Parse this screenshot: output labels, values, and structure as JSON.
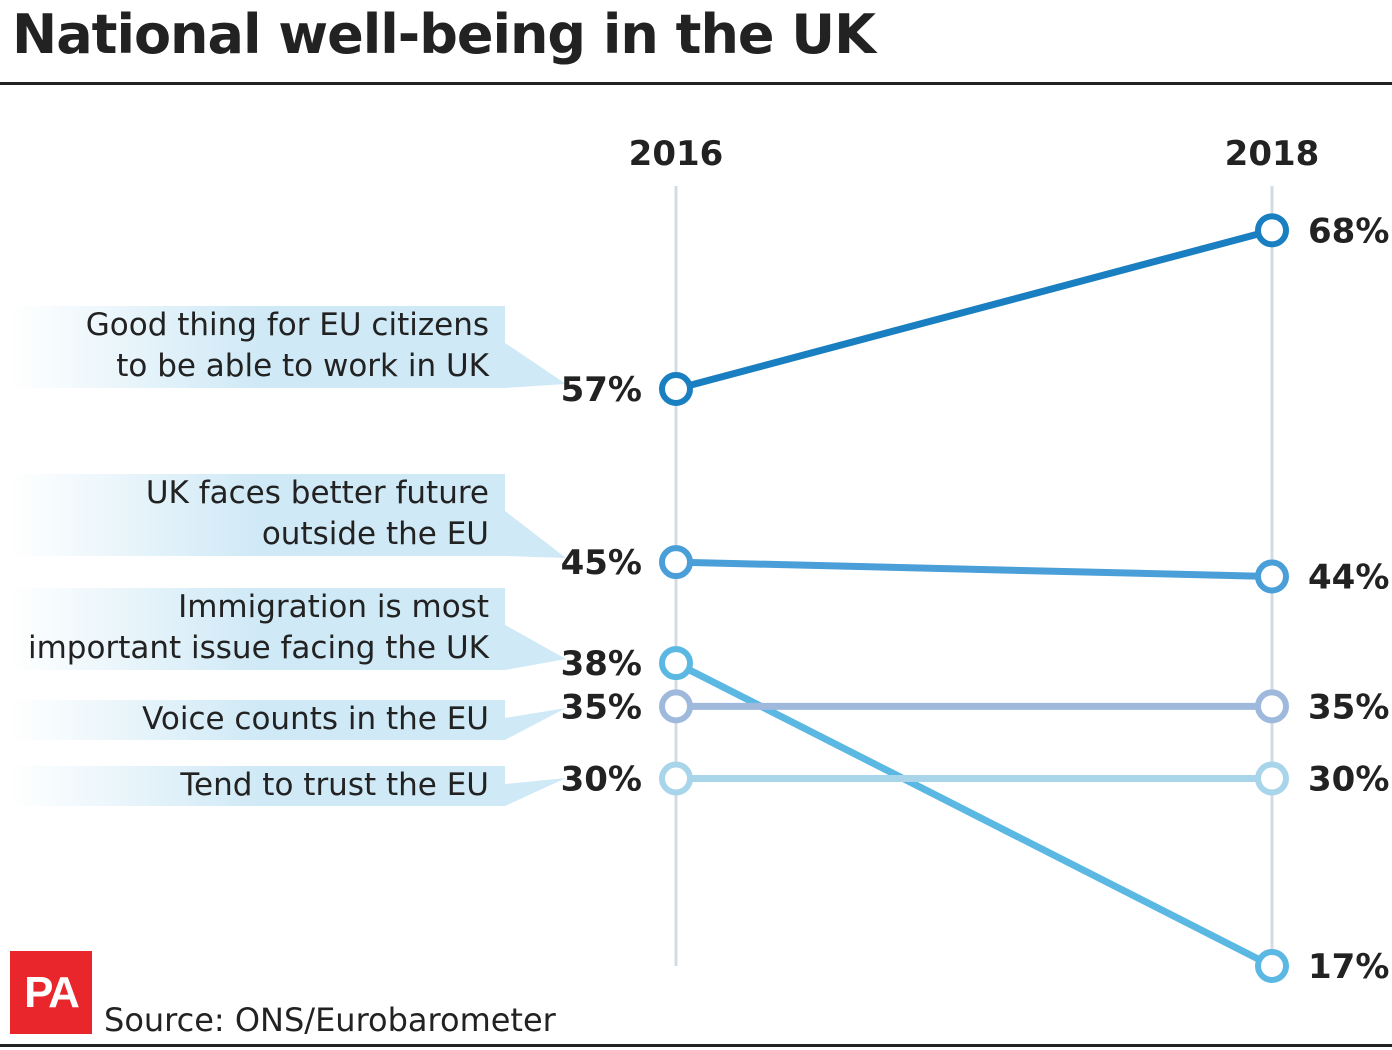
{
  "title": "National well-being in the UK",
  "source": "Source: ONS/Eurobarometer",
  "logo_text": "PA",
  "colors": {
    "axis": "#d5dbe3",
    "label_box": "#cfe9f6",
    "text": "#222222",
    "logo": "#e8262b"
  },
  "chart_data": {
    "type": "line",
    "x": [
      "2016",
      "2018"
    ],
    "unit": "%",
    "series": [
      {
        "name": "Good thing for EU citizens to be able to work in UK",
        "name_lines": [
          "Good thing for EU citizens",
          "to be able to work in UK"
        ],
        "values": [
          57,
          68
        ],
        "labels": [
          "57%",
          "68%"
        ],
        "color": "#1a7fc1"
      },
      {
        "name": "UK faces better future outside the EU",
        "name_lines": [
          "UK faces better future",
          "outside the EU"
        ],
        "values": [
          45,
          44
        ],
        "labels": [
          "45%",
          "44%"
        ],
        "color": "#4b9fd8"
      },
      {
        "name": "Immigration is most important issue facing the UK",
        "name_lines": [
          "Immigration is most",
          "important issue facing the UK"
        ],
        "values": [
          38,
          17
        ],
        "labels": [
          "38%",
          "17%"
        ],
        "color": "#5bb8e2"
      },
      {
        "name": "Voice counts in the EU",
        "name_lines": [
          "Voice counts in the EU"
        ],
        "values": [
          35,
          35
        ],
        "labels": [
          "35%",
          "35%"
        ],
        "color": "#9fb9dc"
      },
      {
        "name": "Tend to trust the EU",
        "name_lines": [
          "Tend to trust the EU"
        ],
        "values": [
          30,
          30
        ],
        "labels": [
          "30%",
          "30%"
        ],
        "color": "#a9d5ea"
      }
    ]
  }
}
